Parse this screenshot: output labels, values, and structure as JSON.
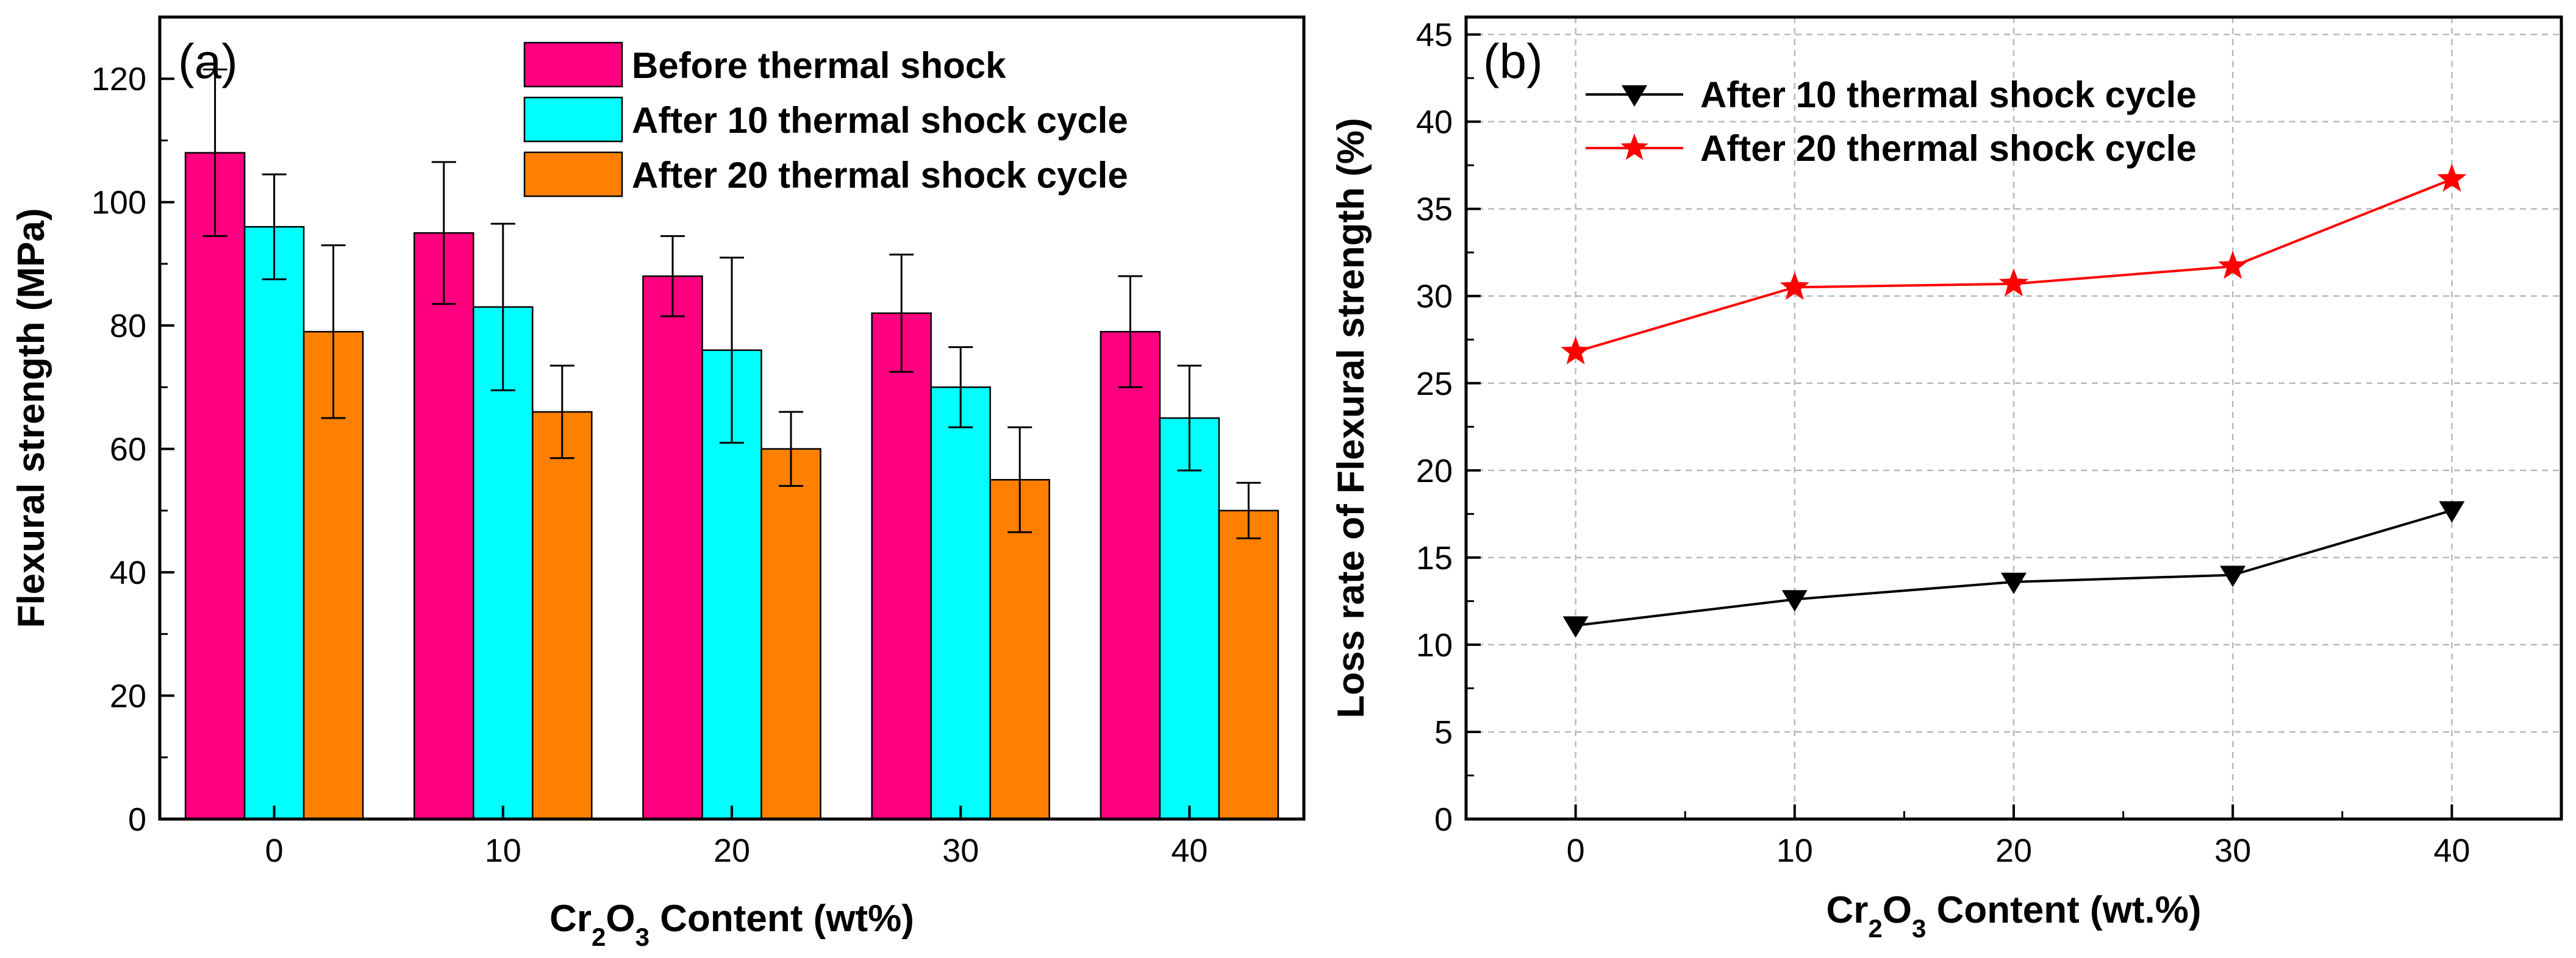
{
  "chart_data": [
    {
      "panel_label": "(a)",
      "type": "bar",
      "xlabel_parts": [
        "Cr",
        "2",
        "O",
        "3",
        " Content (wt%)"
      ],
      "ylabel": "Flexural strength (MPa)",
      "categories": [
        "0",
        "10",
        "20",
        "30",
        "40"
      ],
      "ylim": [
        0,
        130
      ],
      "yticks": [
        0,
        20,
        40,
        60,
        80,
        100,
        120
      ],
      "grid": false,
      "legend_position": "top-right",
      "series": [
        {
          "name": "Before thermal shock",
          "color": "#ff0080",
          "values": [
            108,
            95,
            88,
            82,
            79
          ],
          "errors": [
            13.5,
            11.5,
            6.5,
            9.5,
            9
          ]
        },
        {
          "name": "After 10 thermal shock cycle",
          "color": "#00ffff",
          "values": [
            96,
            83,
            76,
            70,
            65
          ],
          "errors": [
            8.5,
            13.5,
            15,
            6.5,
            8.5
          ]
        },
        {
          "name": "After 20 thermal shock cycle",
          "color": "#ff8000",
          "values": [
            79,
            66,
            60,
            55,
            50
          ],
          "errors": [
            14,
            7.5,
            6,
            8.5,
            4.5
          ]
        }
      ]
    },
    {
      "panel_label": "(b)",
      "type": "line",
      "xlabel_parts": [
        "Cr",
        "2",
        "O",
        "3",
        " Content (wt.%)"
      ],
      "ylabel": "Loss rate of Flexural strength (%)",
      "x": [
        0,
        10,
        20,
        30,
        40
      ],
      "xlim": [
        -5,
        45
      ],
      "xticks": [
        0,
        10,
        20,
        30,
        40
      ],
      "ylim": [
        0,
        46
      ],
      "yticks": [
        0,
        5,
        10,
        15,
        20,
        25,
        30,
        35,
        40,
        45
      ],
      "grid": true,
      "legend_position": "top-left",
      "series": [
        {
          "name": "After 10 thermal shock cycle",
          "color": "#000000",
          "marker": "triangle-down",
          "values": [
            11.1,
            12.6,
            13.6,
            14.0,
            17.7
          ]
        },
        {
          "name": "After 20 thermal shock cycle",
          "color": "#ff0000",
          "marker": "star",
          "values": [
            26.8,
            30.5,
            30.7,
            31.7,
            36.7
          ]
        }
      ]
    }
  ]
}
